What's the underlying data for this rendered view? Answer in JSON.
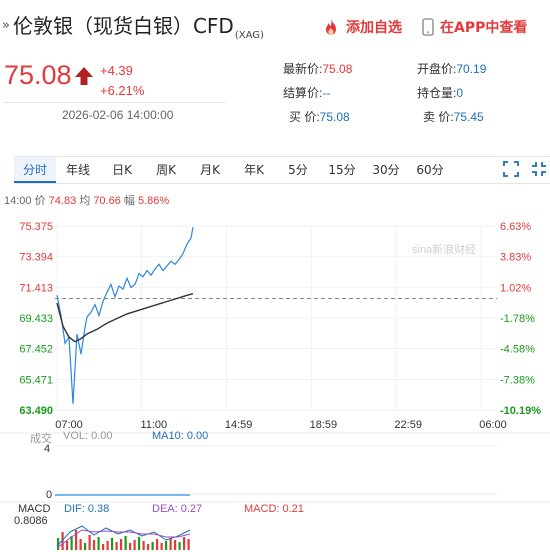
{
  "header": {
    "mark": "»",
    "title": "伦敦银（现货白银）CFD",
    "subtitle": "(XAG)",
    "fav_label": "添加自选",
    "app_label": "在APP中查看"
  },
  "quote": {
    "price": "75.08",
    "change": "+4.39",
    "change_pct": "+6.21%",
    "datetime": "2026-02-06 14:00:00"
  },
  "stats": {
    "latest_label": "最新价:",
    "latest": "75.08",
    "open_label": "开盘价:",
    "open": "70.19",
    "settle_label": "结算价:",
    "settle": "--",
    "oi_label": "持仓量:",
    "oi": "0",
    "bid_label": "买  价:",
    "bid": "75.08",
    "ask_label": "卖  价:",
    "ask": "75.45"
  },
  "tabs": [
    "分时",
    "年线",
    "日K",
    "周K",
    "月K",
    "年K",
    "5分",
    "15分",
    "30分",
    "60分"
  ],
  "info": {
    "time": "14:00",
    "price_label": "价",
    "price": "74.83",
    "avg_label": "均",
    "avg": "70.66",
    "amp_label": "幅",
    "amp": "5.86%"
  },
  "chart_data": {
    "type": "line",
    "y_ticks": [
      "75.375",
      "73.394",
      "71.413",
      "69.433",
      "67.452",
      "65.471",
      "63.490"
    ],
    "pct_ticks": [
      "6.63%",
      "3.83%",
      "1.02%",
      "-1.78%",
      "-4.58%",
      "-7.38%",
      "-10.19%"
    ],
    "x_ticks": [
      "07:00",
      "11:00",
      "14:59",
      "18:59",
      "22:59",
      "06:00"
    ],
    "watermark": "sina新浪财经",
    "ylim": [
      63.49,
      75.375
    ],
    "reference": 70.69,
    "series": [
      {
        "name": "价",
        "x": [
          0,
          4,
          8,
          12,
          16,
          20,
          24,
          28,
          30,
          34,
          38,
          42,
          46,
          50,
          54,
          58,
          62,
          66,
          70,
          74,
          78,
          82,
          86,
          90,
          94,
          98,
          102,
          106,
          110,
          114,
          118,
          122,
          126,
          130,
          134,
          136
        ],
        "y": [
          70.9,
          69.6,
          67.8,
          68.2,
          63.9,
          68.4,
          67.1,
          68.8,
          69.5,
          69.8,
          70.3,
          69.6,
          70.5,
          71.1,
          71.6,
          70.8,
          71.5,
          71.3,
          72.0,
          71.4,
          71.6,
          72.3,
          72.1,
          72.5,
          72.2,
          72.6,
          72.9,
          72.5,
          72.8,
          73.1,
          72.9,
          73.2,
          73.6,
          74.2,
          74.6,
          75.3
        ]
      },
      {
        "name": "均",
        "x": [
          0,
          6,
          12,
          18,
          24,
          30,
          40,
          50,
          60,
          70,
          80,
          90,
          100,
          110,
          120,
          130,
          136
        ],
        "y": [
          70.4,
          68.9,
          68.2,
          67.9,
          68.1,
          68.4,
          68.7,
          69.1,
          69.4,
          69.7,
          69.9,
          70.1,
          70.3,
          70.5,
          70.7,
          70.9,
          71.0
        ]
      }
    ]
  },
  "volume": {
    "label": "成交",
    "vol_label": "VOL: 0.00",
    "ma10_label": "MA10: 0.00",
    "y_top": "4",
    "y_bottom": "0"
  },
  "macd": {
    "label": "MACD",
    "dif_label": "DIF: 0.38",
    "dea_label": "DEA: 0.27",
    "macd_label": "MACD: 0.21",
    "y_top": "0.8086"
  },
  "colors": {
    "red": "#e4393c",
    "green": "#1a9b1a",
    "blue": "#1e6fbd",
    "line": "#2e86de",
    "avg": "#333333"
  }
}
